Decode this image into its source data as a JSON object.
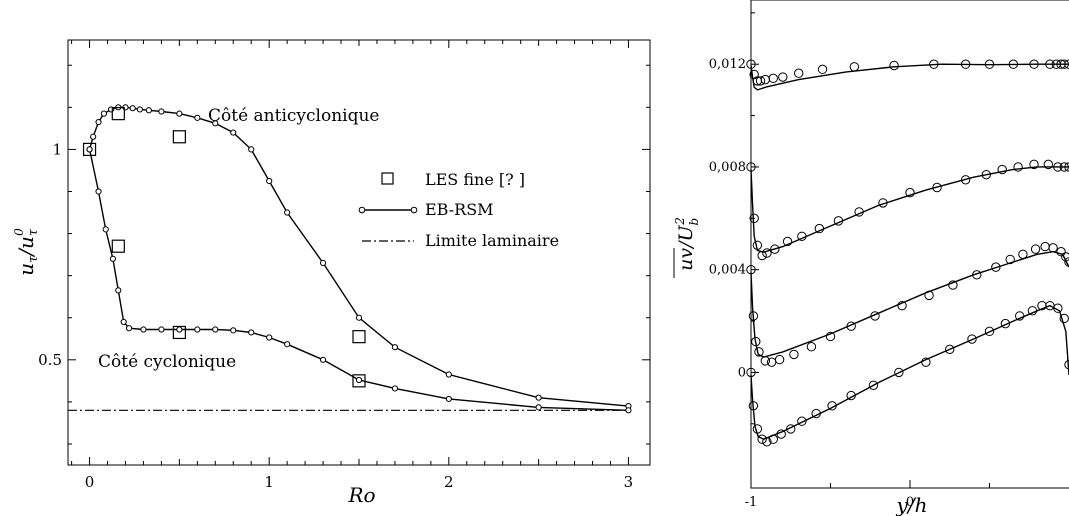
{
  "chart_data": [
    {
      "type": "line",
      "title": "",
      "xlabel": "Ro",
      "ylabel": "u_τ / u_τ^0",
      "xlim": [
        -0.12,
        3.12
      ],
      "ylim": [
        0.25,
        1.26
      ],
      "x_ticks": [
        0,
        1,
        2,
        3
      ],
      "x_tick_labels": [
        "0",
        "1",
        "2",
        "3"
      ],
      "y_ticks": [
        0.5,
        1
      ],
      "y_tick_labels": [
        "0.5",
        "1"
      ],
      "grid": false,
      "legend_position": "right",
      "legend": [
        {
          "label": "LES fine [? ]",
          "marker": "square"
        },
        {
          "label": "EB-RSM",
          "marker": "circle-line"
        },
        {
          "label": "Limite laminaire",
          "marker": "dash-dot"
        }
      ],
      "annotations": [
        "Côté anticyclonique",
        "Côté cyclonique"
      ],
      "series": [
        {
          "name": "LES fine [? ]",
          "kind": "square",
          "points": [
            [
              0,
              1.0
            ],
            [
              0.16,
              1.085
            ],
            [
              0.5,
              1.03
            ],
            [
              0.16,
              0.77
            ],
            [
              0.5,
              0.565
            ],
            [
              1.5,
              0.555
            ],
            [
              1.5,
              0.45
            ]
          ]
        },
        {
          "name": "EB-RSM (Côté anticyclonique)",
          "kind": "circle-line",
          "points": [
            [
              0,
              1.0
            ],
            [
              0.02,
              1.03
            ],
            [
              0.05,
              1.065
            ],
            [
              0.08,
              1.085
            ],
            [
              0.12,
              1.095
            ],
            [
              0.16,
              1.1
            ],
            [
              0.2,
              1.1
            ],
            [
              0.24,
              1.098
            ],
            [
              0.28,
              1.095
            ],
            [
              0.33,
              1.093
            ],
            [
              0.4,
              1.09
            ],
            [
              0.5,
              1.085
            ],
            [
              0.6,
              1.075
            ],
            [
              0.7,
              1.062
            ],
            [
              0.8,
              1.04
            ],
            [
              0.9,
              1.0
            ],
            [
              1.0,
              0.925
            ],
            [
              1.1,
              0.85
            ],
            [
              1.3,
              0.73
            ],
            [
              1.5,
              0.6
            ],
            [
              1.7,
              0.53
            ],
            [
              2.0,
              0.465
            ],
            [
              2.5,
              0.41
            ],
            [
              3.0,
              0.39
            ]
          ]
        },
        {
          "name": "EB-RSM (Côté cyclonique)",
          "kind": "circle-line",
          "points": [
            [
              0,
              1.0
            ],
            [
              0.05,
              0.9
            ],
            [
              0.09,
              0.81
            ],
            [
              0.13,
              0.74
            ],
            [
              0.16,
              0.665
            ],
            [
              0.19,
              0.59
            ],
            [
              0.22,
              0.575
            ],
            [
              0.3,
              0.572
            ],
            [
              0.4,
              0.572
            ],
            [
              0.5,
              0.572
            ],
            [
              0.6,
              0.572
            ],
            [
              0.7,
              0.572
            ],
            [
              0.8,
              0.57
            ],
            [
              0.9,
              0.565
            ],
            [
              1.0,
              0.553
            ],
            [
              1.1,
              0.537
            ],
            [
              1.3,
              0.5
            ],
            [
              1.5,
              0.452
            ],
            [
              1.7,
              0.432
            ],
            [
              2.0,
              0.407
            ],
            [
              2.5,
              0.387
            ],
            [
              3.0,
              0.38
            ]
          ]
        },
        {
          "name": "Limite laminaire",
          "kind": "dash-dot",
          "points": [
            [
              -0.12,
              0.38
            ],
            [
              3.0,
              0.38
            ]
          ]
        }
      ]
    },
    {
      "type": "line",
      "title": "",
      "xlabel": "y/h",
      "ylabel": "\\overline{uv}/U_b^2",
      "xlim": [
        -1,
        1
      ],
      "ylim": [
        -0.0045,
        0.0145
      ],
      "x_ticks": [
        -1,
        0
      ],
      "x_tick_labels": [
        "-1",
        "0"
      ],
      "y_ticks": [
        0,
        0.004,
        0.008,
        0.012
      ],
      "y_tick_labels": [
        "0",
        "0,004",
        "0,008",
        "0,012"
      ],
      "grid": false,
      "series": [
        {
          "name": "",
          "kind": "circle",
          "points": [
            [
              -1.0,
              0.012
            ],
            [
              -0.98,
              0.0116
            ],
            [
              -0.96,
              0.01135
            ],
            [
              -0.94,
              0.01135
            ],
            [
              -0.91,
              0.0114
            ],
            [
              -0.86,
              0.01145
            ],
            [
              -0.8,
              0.0115
            ],
            [
              -0.7,
              0.01165
            ],
            [
              -0.55,
              0.0118
            ],
            [
              -0.35,
              0.0119
            ],
            [
              -0.1,
              0.01195
            ],
            [
              0.15,
              0.012
            ],
            [
              0.35,
              0.012
            ],
            [
              0.5,
              0.012
            ],
            [
              0.65,
              0.012
            ],
            [
              0.78,
              0.012
            ],
            [
              0.88,
              0.012
            ],
            [
              0.92,
              0.012
            ],
            [
              0.95,
              0.012
            ],
            [
              0.97,
              0.012
            ],
            [
              1.0,
              0.012
            ]
          ]
        },
        {
          "name": "",
          "kind": "line",
          "points": [
            [
              -1.0,
              0.01195
            ],
            [
              -0.99,
              0.0115
            ],
            [
              -0.98,
              0.0111
            ],
            [
              -0.96,
              0.011
            ],
            [
              -0.9,
              0.01112
            ],
            [
              -0.7,
              0.0114
            ],
            [
              -0.4,
              0.0117
            ],
            [
              -0.1,
              0.0119
            ],
            [
              0.2,
              0.012
            ],
            [
              0.5,
              0.01198
            ],
            [
              0.8,
              0.012
            ],
            [
              1.0,
              0.012
            ]
          ]
        },
        {
          "name": "",
          "kind": "circle",
          "points": [
            [
              -1.0,
              0.008
            ],
            [
              -0.98,
              0.006
            ],
            [
              -0.96,
              0.00495
            ],
            [
              -0.93,
              0.00455
            ],
            [
              -0.9,
              0.00465
            ],
            [
              -0.85,
              0.0048
            ],
            [
              -0.77,
              0.0051
            ],
            [
              -0.68,
              0.0053
            ],
            [
              -0.57,
              0.0056
            ],
            [
              -0.45,
              0.0059
            ],
            [
              -0.32,
              0.00625
            ],
            [
              -0.17,
              0.0066
            ],
            [
              0.0,
              0.007
            ],
            [
              0.17,
              0.0072
            ],
            [
              0.35,
              0.0075
            ],
            [
              0.48,
              0.0077
            ],
            [
              0.58,
              0.0079
            ],
            [
              0.68,
              0.008
            ],
            [
              0.78,
              0.0081
            ],
            [
              0.87,
              0.0081
            ],
            [
              0.93,
              0.008
            ],
            [
              0.97,
              0.008
            ],
            [
              1.0,
              0.008
            ]
          ]
        },
        {
          "name": "",
          "kind": "line",
          "points": [
            [
              -1.0,
              0.0079
            ],
            [
              -0.99,
              0.0065
            ],
            [
              -0.98,
              0.0053
            ],
            [
              -0.96,
              0.00475
            ],
            [
              -0.92,
              0.00468
            ],
            [
              -0.8,
              0.0049
            ],
            [
              -0.5,
              0.0057
            ],
            [
              -0.2,
              0.0065
            ],
            [
              0.1,
              0.0071
            ],
            [
              0.4,
              0.0076
            ],
            [
              0.65,
              0.0079
            ],
            [
              0.8,
              0.008
            ],
            [
              0.9,
              0.008
            ],
            [
              1.0,
              0.008
            ]
          ]
        },
        {
          "name": "",
          "kind": "circle",
          "points": [
            [
              -1.0,
              0.004
            ],
            [
              -0.985,
              0.0022
            ],
            [
              -0.97,
              0.0012
            ],
            [
              -0.95,
              0.0008
            ],
            [
              -0.91,
              0.00045
            ],
            [
              -0.87,
              0.0004
            ],
            [
              -0.82,
              0.0005
            ],
            [
              -0.73,
              0.0007
            ],
            [
              -0.62,
              0.001
            ],
            [
              -0.5,
              0.0014
            ],
            [
              -0.37,
              0.0018
            ],
            [
              -0.22,
              0.0022
            ],
            [
              -0.05,
              0.0026
            ],
            [
              0.12,
              0.003
            ],
            [
              0.27,
              0.0034
            ],
            [
              0.42,
              0.0038
            ],
            [
              0.54,
              0.0041
            ],
            [
              0.63,
              0.0044
            ],
            [
              0.71,
              0.0046
            ],
            [
              0.79,
              0.0048
            ],
            [
              0.85,
              0.0049
            ],
            [
              0.9,
              0.00485
            ],
            [
              0.95,
              0.0047
            ],
            [
              0.98,
              0.0045
            ],
            [
              1.0,
              0.0043
            ]
          ]
        },
        {
          "name": "",
          "kind": "line",
          "points": [
            [
              -1.0,
              0.0039
            ],
            [
              -0.99,
              0.0025
            ],
            [
              -0.975,
              0.0013
            ],
            [
              -0.955,
              0.0007
            ],
            [
              -0.92,
              0.0006
            ],
            [
              -0.8,
              0.0008
            ],
            [
              -0.5,
              0.0015
            ],
            [
              -0.2,
              0.0023
            ],
            [
              0.1,
              0.0031
            ],
            [
              0.4,
              0.0038
            ],
            [
              0.65,
              0.0043
            ],
            [
              0.8,
              0.0046
            ],
            [
              0.9,
              0.0047
            ],
            [
              0.96,
              0.0046
            ],
            [
              1.0,
              0.0041
            ]
          ]
        },
        {
          "name": "",
          "kind": "circle",
          "points": [
            [
              -1.0,
              0.0
            ],
            [
              -0.985,
              -0.0013
            ],
            [
              -0.96,
              -0.0022
            ],
            [
              -0.93,
              -0.0026
            ],
            [
              -0.9,
              -0.0027
            ],
            [
              -0.86,
              -0.0026
            ],
            [
              -0.81,
              -0.0024
            ],
            [
              -0.75,
              -0.0022
            ],
            [
              -0.68,
              -0.0019
            ],
            [
              -0.59,
              -0.0016
            ],
            [
              -0.49,
              -0.0013
            ],
            [
              -0.37,
              -0.0009
            ],
            [
              -0.23,
              -0.0005
            ],
            [
              -0.07,
              0.0
            ],
            [
              0.1,
              0.0004
            ],
            [
              0.25,
              0.0009
            ],
            [
              0.39,
              0.0013
            ],
            [
              0.5,
              0.0016
            ],
            [
              0.6,
              0.0019
            ],
            [
              0.69,
              0.0022
            ],
            [
              0.77,
              0.0024
            ],
            [
              0.83,
              0.0026
            ],
            [
              0.88,
              0.0026
            ],
            [
              0.93,
              0.0025
            ],
            [
              0.97,
              0.0021
            ],
            [
              1.0,
              0.0003
            ]
          ]
        },
        {
          "name": "",
          "kind": "line",
          "points": [
            [
              -1.0,
              -0.0001
            ],
            [
              -0.99,
              -0.0011
            ],
            [
              -0.975,
              -0.0021
            ],
            [
              -0.955,
              -0.0025
            ],
            [
              -0.92,
              -0.0026
            ],
            [
              -0.8,
              -0.0023
            ],
            [
              -0.5,
              -0.0014
            ],
            [
              -0.2,
              -0.0004
            ],
            [
              0.1,
              0.0005
            ],
            [
              0.4,
              0.0013
            ],
            [
              0.65,
              0.002
            ],
            [
              0.8,
              0.0024
            ],
            [
              0.88,
              0.0026
            ],
            [
              0.94,
              0.0024
            ],
            [
              0.98,
              0.0016
            ],
            [
              1.0,
              -0.0001
            ]
          ]
        }
      ]
    }
  ]
}
